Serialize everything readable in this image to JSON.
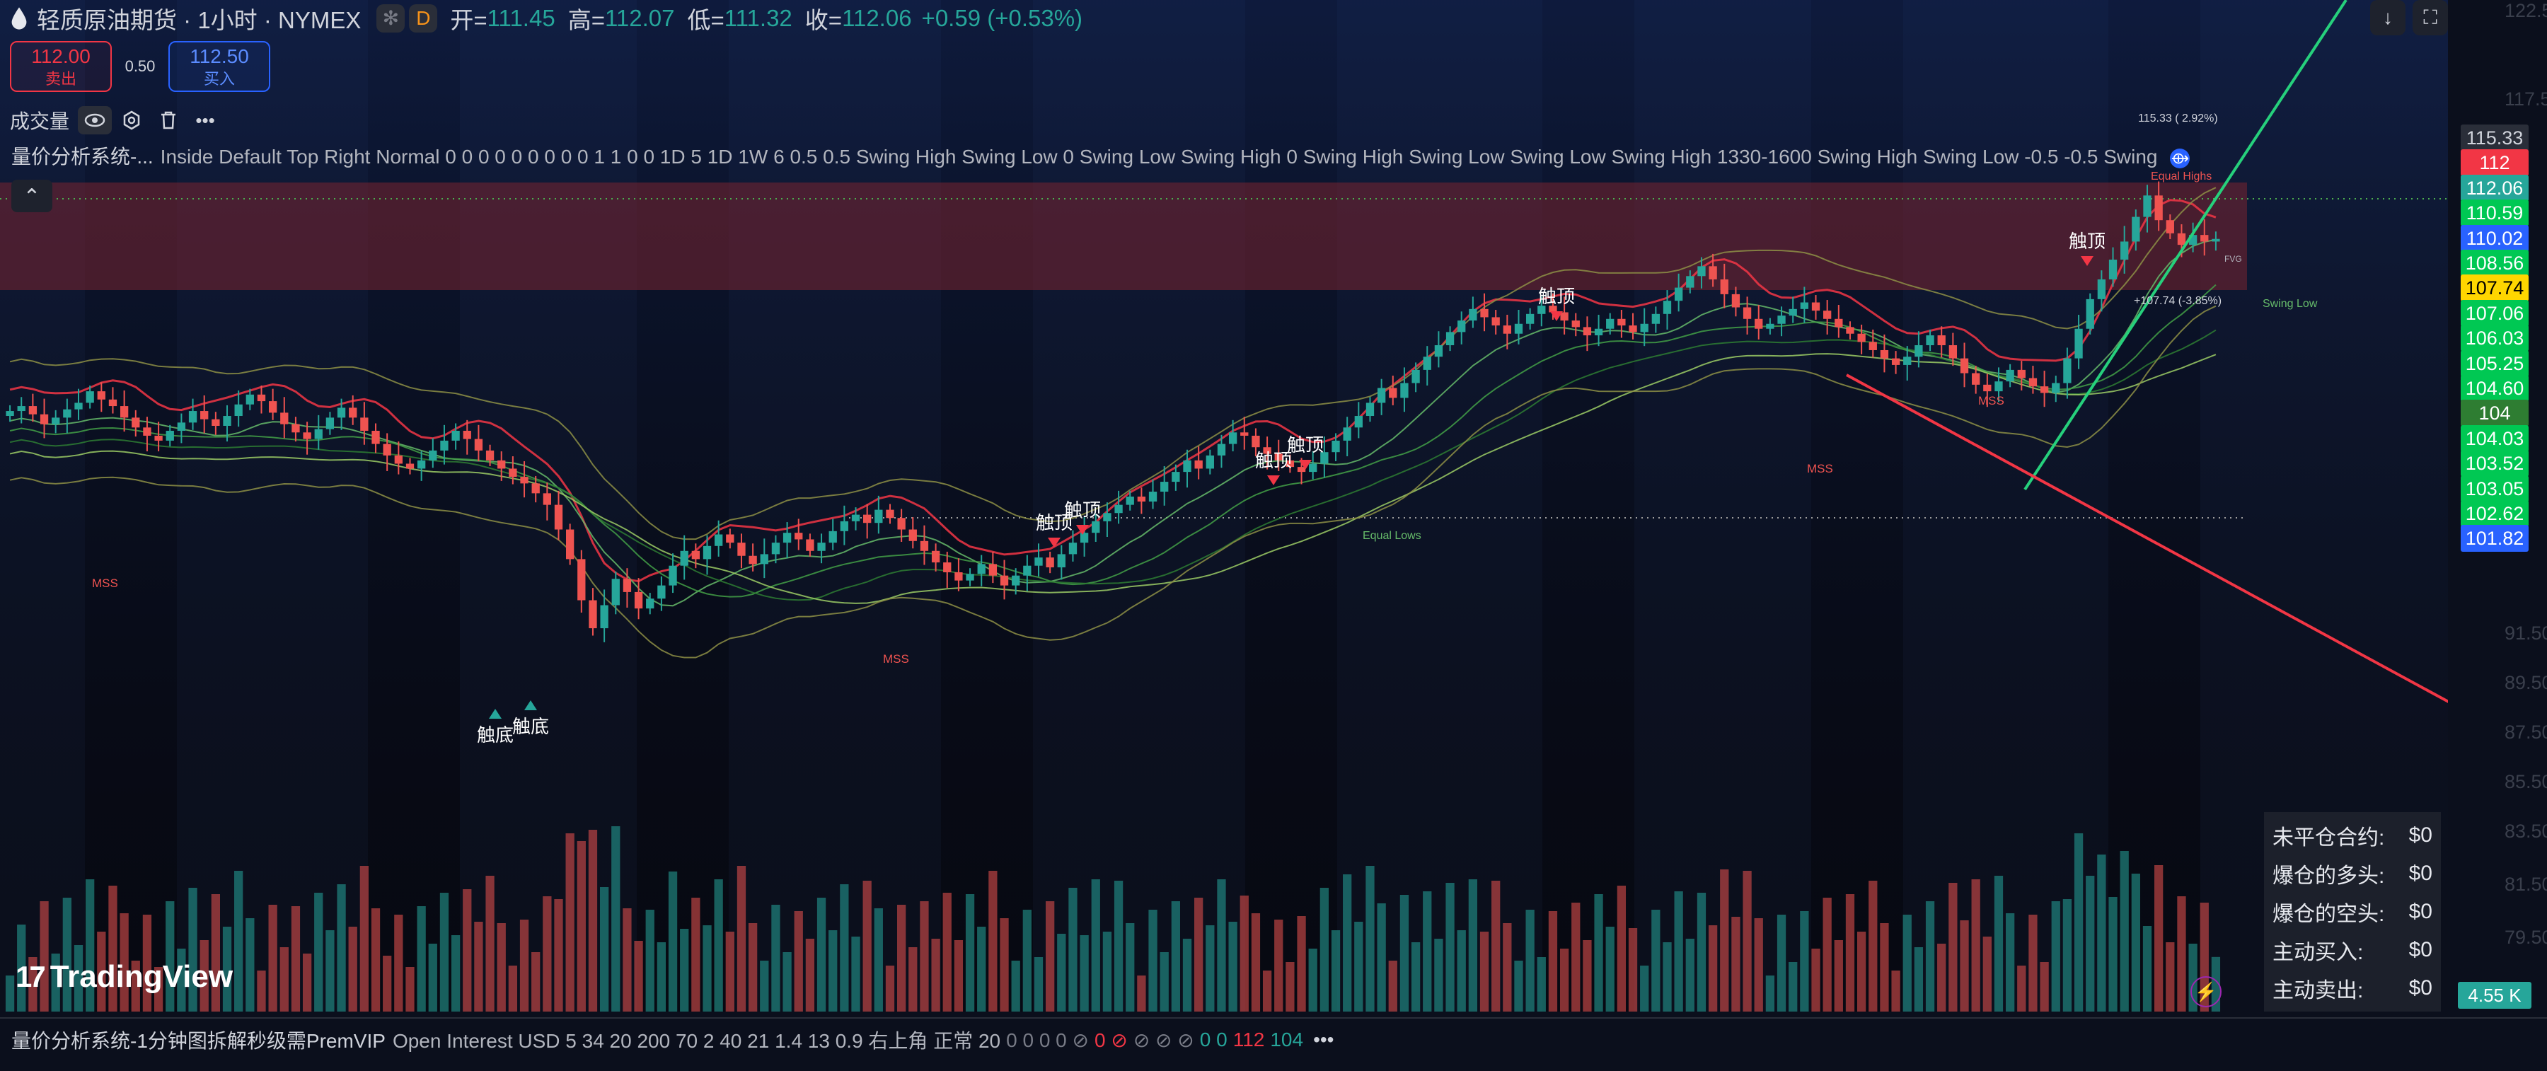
{
  "header": {
    "symbol_title": "轻质原油期货 · 1小时 · NYMEX",
    "extra_icon": "asterisk-icon",
    "data_badge": "D",
    "open_label": "开=",
    "open_value": "111.45",
    "high_label": "高=",
    "high_value": "112.07",
    "low_label": "低=",
    "low_value": "111.32",
    "close_label": "收=",
    "close_value": "112.06",
    "change": "+0.59 (+0.53%)"
  },
  "trade": {
    "sell_price": "112.00",
    "sell_label": "卖出",
    "spread": "0.50",
    "buy_price": "112.50",
    "buy_label": "买入"
  },
  "volume_indicator": {
    "name": "成交量",
    "icons": [
      "eye-icon",
      "settings-icon",
      "trash-icon",
      "more-icon"
    ]
  },
  "indicator_1": {
    "name": "量价分析系统-...",
    "params": "Inside Default Top Right Normal 0 0 0 0 0 0 0 0 0 1 1 0 0 1D 5 1D 1W 6 0.5 0.5 Swing High Swing Low 0 Swing Low Swing High 0 Swing High Swing Low Swing Low Swing High 1330-1600 Swing High Swing Low -0.5 -0.5 Swing"
  },
  "indicator_2": {
    "name": "量价分析系统-1分钟图拆解秒级需PremVIP",
    "params": "Open Interest USD 5 34 20 200 70 2 40 21 1.4 13 0.9 右上角 正常 20",
    "tail_grey": "0 0 0 0 ⊘",
    "tail_red1": "0 ⊘",
    "tail_grey2": "⊘ ⊘ ⊘",
    "tail_green": "0 0",
    "tail_red2": "112",
    "tail_green2": "104",
    "more": "•••"
  },
  "collapse_icon": "chevron-up-icon",
  "price_scale": {
    "labels": [
      {
        "text": "115.33",
        "bg": "#2a2e39",
        "fg": "#d1d4dc"
      },
      {
        "text": "112",
        "bg": "#f23645",
        "fg": "#ffffff"
      },
      {
        "text": "112.06",
        "bg": "#26a69a",
        "fg": "#ffffff"
      },
      {
        "text": "110.59",
        "bg": "#00c853",
        "fg": "#ffffff"
      },
      {
        "text": "110.02",
        "bg": "#2962ff",
        "fg": "#ffffff"
      },
      {
        "text": "108.56",
        "bg": "#00c853",
        "fg": "#ffffff"
      },
      {
        "text": "107.74",
        "bg": "#ffd600",
        "fg": "#000000"
      },
      {
        "text": "107.06",
        "bg": "#00c853",
        "fg": "#ffffff"
      },
      {
        "text": "106.03",
        "bg": "#00c853",
        "fg": "#ffffff"
      },
      {
        "text": "105.25",
        "bg": "#00c853",
        "fg": "#ffffff"
      },
      {
        "text": "104.60",
        "bg": "#00c853",
        "fg": "#ffffff"
      },
      {
        "text": "104",
        "bg": "#2e7d32",
        "fg": "#ffffff"
      },
      {
        "text": "104.03",
        "bg": "#00c853",
        "fg": "#ffffff"
      },
      {
        "text": "103.52",
        "bg": "#00c853",
        "fg": "#ffffff"
      },
      {
        "text": "103.05",
        "bg": "#00c853",
        "fg": "#ffffff"
      },
      {
        "text": "102.62",
        "bg": "#00c853",
        "fg": "#ffffff"
      },
      {
        "text": "101.82",
        "bg": "#2962ff",
        "fg": "#ffffff"
      }
    ],
    "faint": [
      "122.50",
      "117.50",
      "91.50",
      "89.50",
      "87.50",
      "85.50",
      "83.50",
      "81.50",
      "79.50"
    ]
  },
  "open_interest_panel": {
    "rows": [
      {
        "label": "未平仓合约:",
        "value": "$0"
      },
      {
        "label": "爆仓的多头:",
        "value": "$0"
      },
      {
        "label": "爆仓的空头:",
        "value": "$0"
      },
      {
        "label": "主动买入:",
        "value": "$0"
      },
      {
        "label": "主动卖出:",
        "value": "$0"
      }
    ]
  },
  "volume_tag": "4.55 K",
  "logo_text": "TradingView",
  "chart_labels": {
    "top": "触顶",
    "bottom": "触底",
    "mss": "MSS",
    "equal_highs": "Equal Highs",
    "equal_lows": "Equal Lows",
    "swing_low": "Swing Low",
    "fvg": "FVG",
    "target_up": "115.33 ( 2.92%)",
    "target_dn": "+107.74 (-3.85%)"
  },
  "top_buttons": [
    "arrow-down-icon",
    "fullscreen-icon"
  ],
  "flash_icon": "lightning-icon",
  "chart_data": {
    "type": "candlestick",
    "symbol": "轻质原油期货",
    "interval": "1小时",
    "y_range": [
      78,
      124
    ],
    "last_close": 112.06,
    "closes": [
      101.6,
      101.9,
      101.4,
      100.8,
      101.2,
      101.7,
      102.1,
      102.8,
      102.3,
      101.9,
      101.2,
      100.6,
      100.1,
      99.8,
      100.4,
      100.9,
      101.6,
      101.1,
      100.7,
      101.3,
      102.0,
      102.6,
      102.2,
      101.5,
      100.8,
      100.3,
      99.9,
      100.5,
      101.2,
      101.8,
      101.2,
      100.4,
      99.6,
      98.9,
      98.4,
      98.1,
      98.6,
      99.2,
      99.8,
      100.4,
      99.9,
      99.2,
      98.6,
      98.1,
      97.6,
      97.2,
      96.6,
      95.9,
      94.4,
      92.6,
      90.1,
      88.4,
      89.8,
      91.4,
      90.6,
      89.6,
      90.2,
      91.0,
      92.2,
      93.1,
      92.6,
      93.4,
      94.1,
      93.6,
      92.8,
      92.3,
      92.9,
      93.6,
      94.2,
      93.8,
      93.1,
      93.6,
      94.3,
      94.9,
      95.3,
      94.8,
      95.6,
      95.1,
      94.4,
      93.7,
      93.1,
      92.4,
      91.8,
      91.3,
      91.7,
      92.3,
      91.6,
      91.0,
      91.6,
      92.2,
      92.7,
      92.1,
      92.9,
      93.6,
      94.2,
      94.9,
      95.4,
      95.9,
      96.4,
      96.1,
      96.7,
      97.3,
      97.9,
      98.6,
      98.1,
      98.9,
      99.6,
      100.3,
      100.1,
      99.4,
      99.0,
      98.6,
      98.2,
      97.9,
      98.4,
      99.1,
      99.8,
      100.6,
      101.3,
      102.1,
      103.0,
      102.4,
      103.3,
      104.1,
      104.9,
      105.6,
      106.4,
      107.1,
      107.8,
      107.3,
      106.8,
      106.3,
      106.9,
      107.5,
      108.0,
      107.6,
      107.1,
      106.7,
      106.2,
      106.6,
      107.2,
      106.8,
      106.4,
      106.9,
      107.5,
      108.3,
      109.1,
      109.8,
      110.4,
      109.6,
      108.7,
      107.9,
      107.2,
      106.6,
      106.9,
      107.4,
      107.8,
      108.2,
      107.7,
      107.2,
      106.7,
      106.3,
      105.8,
      105.3,
      104.8,
      104.4,
      104.9,
      105.6,
      106.2,
      105.6,
      104.8,
      103.9,
      103.2,
      102.8,
      103.4,
      104.1,
      103.6,
      103.1,
      102.7,
      103.3,
      104.8,
      106.6,
      108.4,
      109.6,
      110.8,
      111.9,
      113.4,
      114.7,
      113.2,
      112.4,
      111.7,
      112.3,
      111.9,
      112.06
    ]
  }
}
